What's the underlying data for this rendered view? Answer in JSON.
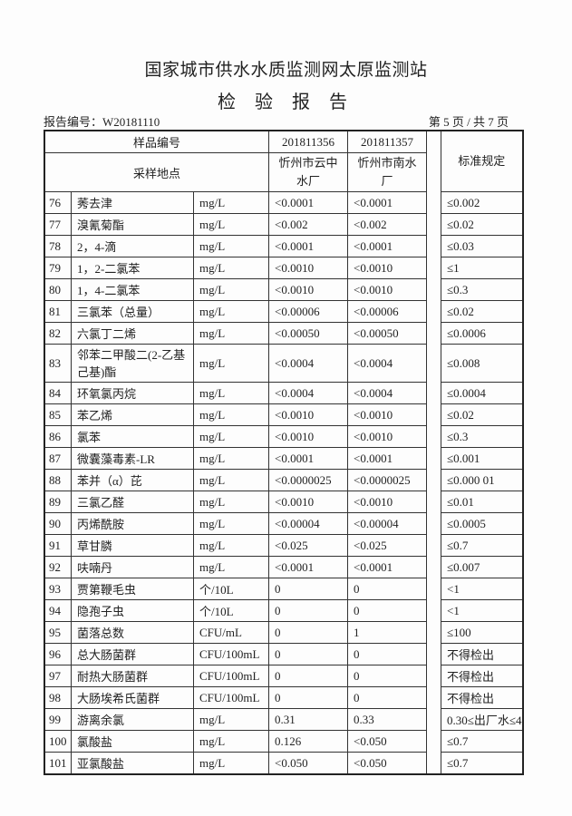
{
  "header": {
    "organization": "国家城市供水水质监测网太原监测站",
    "title": "检 验 报 告",
    "report_no": "报告编号：W20181110",
    "page": "第 5 页 / 共 7 页"
  },
  "table": {
    "sample_no_label": "样品编号",
    "location_label": "采样地点",
    "standard_label": "标准规定",
    "samples": [
      {
        "id": "201811356",
        "location": "忻州市云中水厂"
      },
      {
        "id": "201811357",
        "location": "忻州市南水厂"
      }
    ],
    "rows": [
      {
        "n": "76",
        "name": "莠去津",
        "unit": "mg/L",
        "v1": "<0.0001",
        "v2": "<0.0001",
        "std": "≤0.002"
      },
      {
        "n": "77",
        "name": "溴氰菊酯",
        "unit": "mg/L",
        "v1": "<0.002",
        "v2": "<0.002",
        "std": "≤0.02"
      },
      {
        "n": "78",
        "name": "2，4-滴",
        "unit": "mg/L",
        "v1": "<0.0001",
        "v2": "<0.0001",
        "std": "≤0.03"
      },
      {
        "n": "79",
        "name": "1，2-二氯苯",
        "unit": "mg/L",
        "v1": "<0.0010",
        "v2": "<0.0010",
        "std": "≤1"
      },
      {
        "n": "80",
        "name": "1，4-二氯苯",
        "unit": "mg/L",
        "v1": "<0.0010",
        "v2": "<0.0010",
        "std": "≤0.3"
      },
      {
        "n": "81",
        "name": "三氯苯（总量）",
        "unit": "mg/L",
        "v1": "<0.00006",
        "v2": "<0.00006",
        "std": "≤0.02"
      },
      {
        "n": "82",
        "name": "六氯丁二烯",
        "unit": "mg/L",
        "v1": "<0.00050",
        "v2": "<0.00050",
        "std": "≤0.0006"
      },
      {
        "n": "83",
        "name": "邻苯二甲酸二(2-乙基己基)酯",
        "unit": "mg/L",
        "v1": "<0.0004",
        "v2": "<0.0004",
        "std": "≤0.008"
      },
      {
        "n": "84",
        "name": "环氧氯丙烷",
        "unit": "mg/L",
        "v1": "<0.0004",
        "v2": "<0.0004",
        "std": "≤0.0004"
      },
      {
        "n": "85",
        "name": "苯乙烯",
        "unit": "mg/L",
        "v1": "<0.0010",
        "v2": "<0.0010",
        "std": "≤0.02"
      },
      {
        "n": "86",
        "name": "氯苯",
        "unit": "mg/L",
        "v1": "<0.0010",
        "v2": "<0.0010",
        "std": "≤0.3"
      },
      {
        "n": "87",
        "name": "微囊藻毒素-LR",
        "unit": "mg/L",
        "v1": "<0.0001",
        "v2": "<0.0001",
        "std": "≤0.001"
      },
      {
        "n": "88",
        "name": "苯并（α）芘",
        "unit": "mg/L",
        "v1": "<0.0000025",
        "v2": "<0.0000025",
        "std": "≤0.000 01"
      },
      {
        "n": "89",
        "name": "三氯乙醛",
        "unit": "mg/L",
        "v1": "<0.0010",
        "v2": "<0.0010",
        "std": "≤0.01"
      },
      {
        "n": "90",
        "name": "丙烯酰胺",
        "unit": "mg/L",
        "v1": "<0.00004",
        "v2": "<0.00004",
        "std": "≤0.0005"
      },
      {
        "n": "91",
        "name": "草甘膦",
        "unit": "mg/L",
        "v1": "<0.025",
        "v2": "<0.025",
        "std": "≤0.7"
      },
      {
        "n": "92",
        "name": "呋喃丹",
        "unit": "mg/L",
        "v1": "<0.0001",
        "v2": "<0.0001",
        "std": "≤0.007"
      },
      {
        "n": "93",
        "name": "贾第鞭毛虫",
        "unit": "个/10L",
        "v1": "0",
        "v2": "0",
        "std": "<1"
      },
      {
        "n": "94",
        "name": "隐孢子虫",
        "unit": "个/10L",
        "v1": "0",
        "v2": "0",
        "std": "<1"
      },
      {
        "n": "95",
        "name": "菌落总数",
        "unit": "CFU/mL",
        "v1": "0",
        "v2": "1",
        "std": "≤100"
      },
      {
        "n": "96",
        "name": "总大肠菌群",
        "unit": "CFU/100mL",
        "v1": "0",
        "v2": "0",
        "std": "不得检出"
      },
      {
        "n": "97",
        "name": "耐热大肠菌群",
        "unit": "CFU/100mL",
        "v1": "0",
        "v2": "0",
        "std": "不得检出"
      },
      {
        "n": "98",
        "name": "大肠埃希氏菌群",
        "unit": "CFU/100mL",
        "v1": "0",
        "v2": "0",
        "std": "不得检出"
      },
      {
        "n": "99",
        "name": "游离余氯",
        "unit": "mg/L",
        "v1": "0.31",
        "v2": "0.33",
        "std": "0.30≤出厂水≤4"
      },
      {
        "n": "100",
        "name": "氯酸盐",
        "unit": "mg/L",
        "v1": "0.126",
        "v2": "<0.050",
        "std": "≤0.7"
      },
      {
        "n": "101",
        "name": "亚氯酸盐",
        "unit": "mg/L",
        "v1": "<0.050",
        "v2": "<0.050",
        "std": "≤0.7"
      }
    ]
  }
}
